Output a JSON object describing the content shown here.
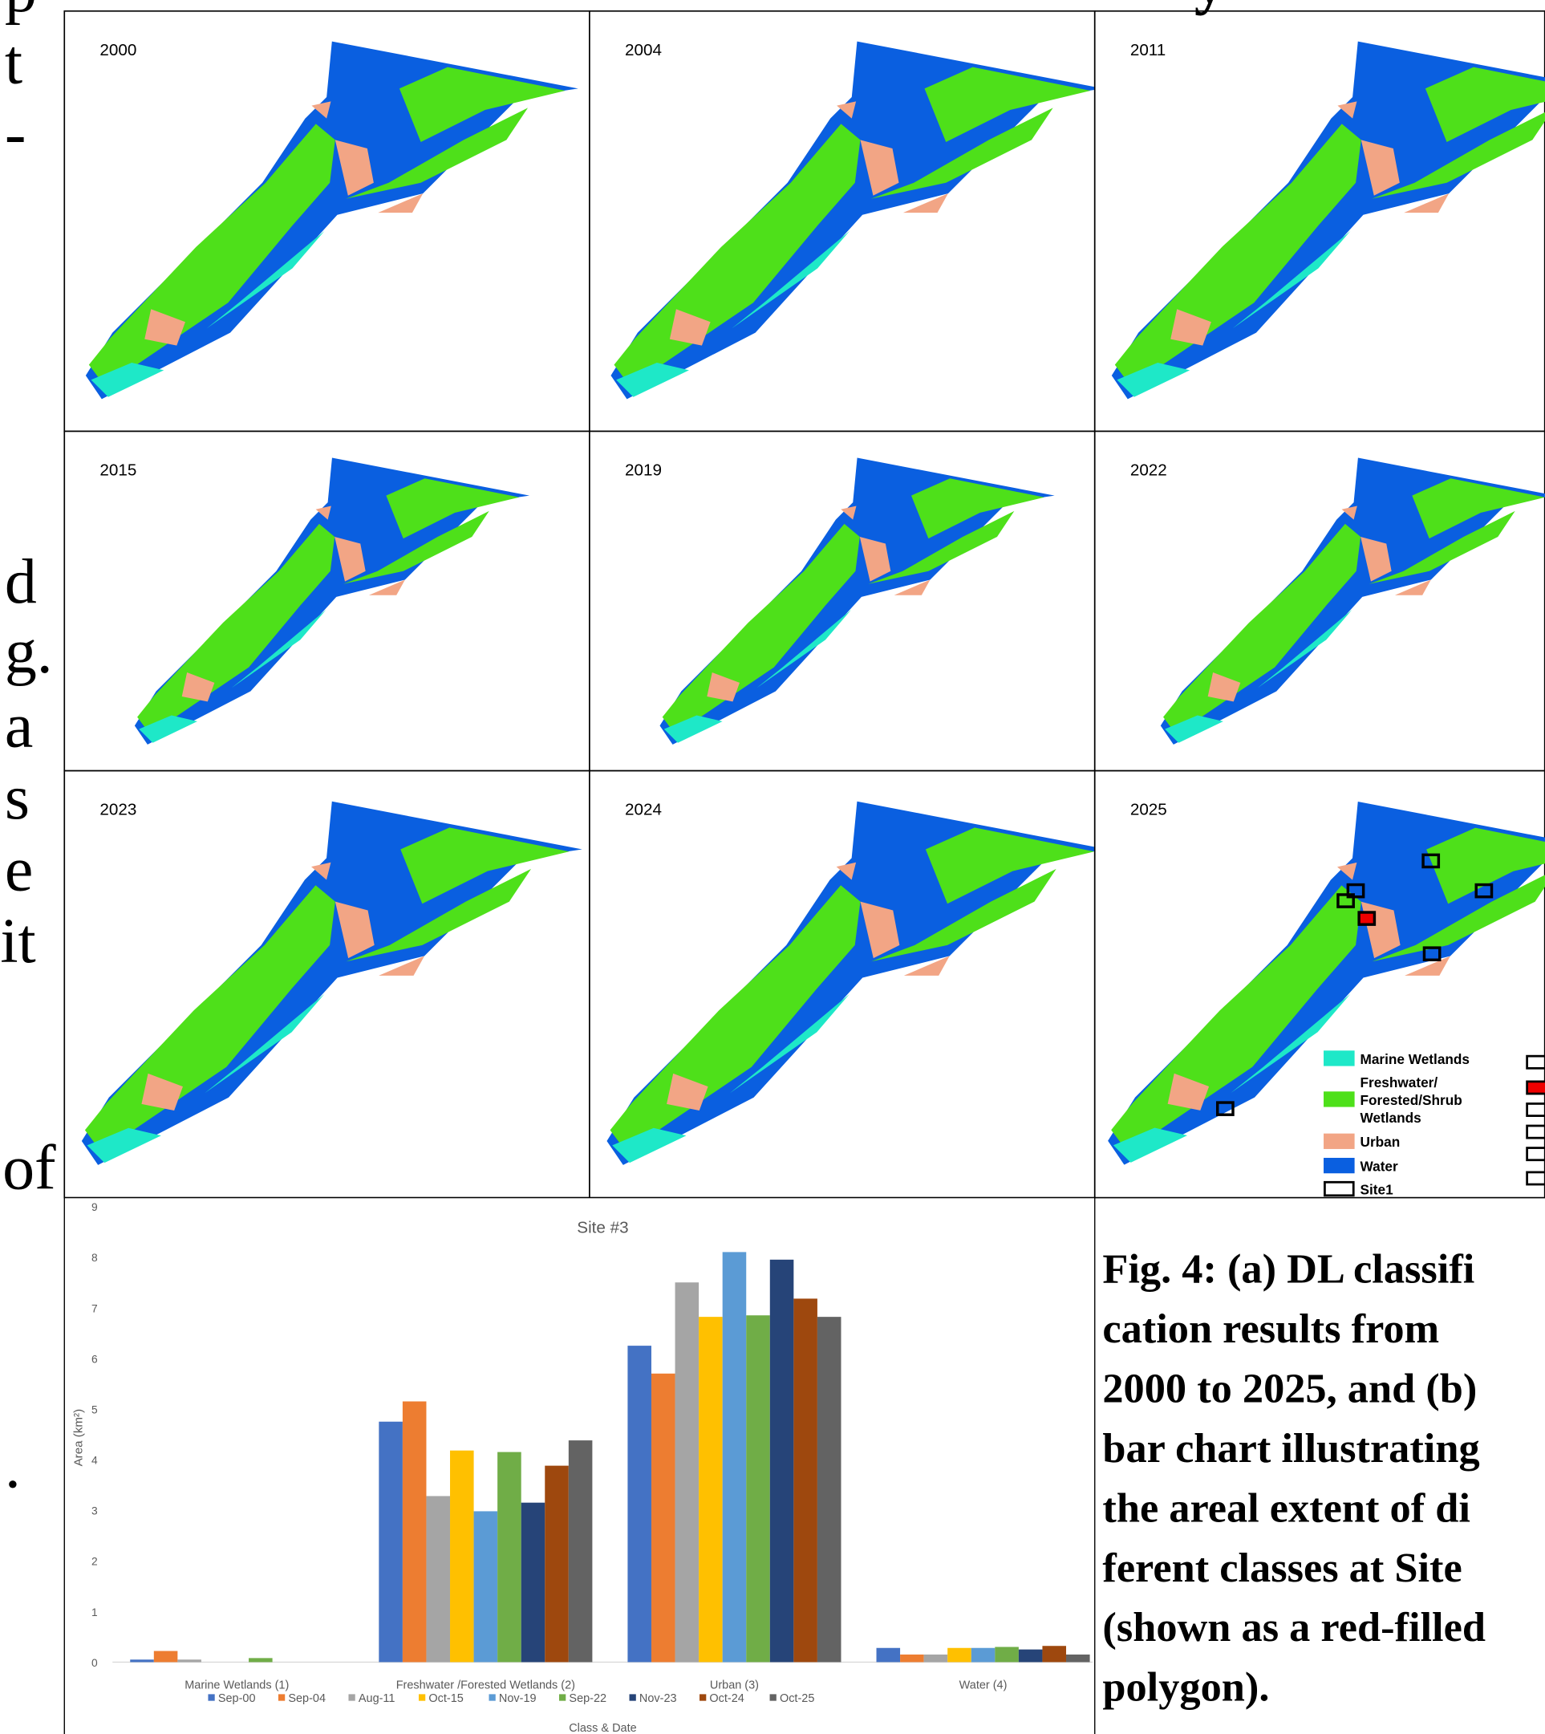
{
  "page_fragments": {
    "top": "y",
    "left_column": [
      "p",
      "t",
      "-",
      "d",
      "g.",
      "a",
      "s",
      "e",
      "it",
      "of",
      "."
    ]
  },
  "maps": {
    "panels": [
      "2000",
      "2004",
      "2011",
      "2015",
      "2019",
      "2022",
      "2023",
      "2024",
      "2025"
    ],
    "legend": {
      "marine": "Marine Wetlands",
      "freshwater": [
        "Freshwater/",
        "Forested/Shrub",
        "Wetlands"
      ],
      "urban": "Urban",
      "water": "Water",
      "site": "Site1"
    }
  },
  "chart_data": {
    "type": "bar",
    "title": "Site #3",
    "y_label": "Area (km²)",
    "x_label": "Class & Date",
    "categories": [
      "Marine Wetlands (1)",
      "Freshwater /Forested Wetlands (2)",
      "Urban (3)",
      "Water (4)"
    ],
    "series": [
      {
        "name": "Sep-00",
        "color": "#4472c4",
        "values": [
          0.05,
          4.75,
          6.25,
          0.28
        ]
      },
      {
        "name": "Sep-04",
        "color": "#ed7d31",
        "values": [
          0.22,
          5.15,
          5.7,
          0.15
        ]
      },
      {
        "name": "Aug-11",
        "color": "#a5a5a5",
        "values": [
          0.05,
          3.28,
          7.5,
          0.15
        ]
      },
      {
        "name": "Oct-15",
        "color": "#ffc000",
        "values": [
          0,
          4.18,
          6.82,
          0.28
        ]
      },
      {
        "name": "Nov-19",
        "color": "#5b9bd5",
        "values": [
          0,
          2.98,
          8.1,
          0.28
        ]
      },
      {
        "name": "Sep-22",
        "color": "#70ad47",
        "values": [
          0.08,
          4.15,
          6.85,
          0.3
        ]
      },
      {
        "name": "Nov-23",
        "color": "#264478",
        "values": [
          0,
          3.15,
          7.95,
          0.25
        ]
      },
      {
        "name": "Oct-24",
        "color": "#9e480e",
        "values": [
          0,
          3.88,
          7.18,
          0.32
        ]
      },
      {
        "name": "Oct-25",
        "color": "#636363",
        "values": [
          0,
          4.38,
          6.82,
          0.15
        ]
      }
    ],
    "ylim": [
      0,
      9
    ],
    "yticks": [
      0,
      1,
      2,
      3,
      4,
      5,
      6,
      7,
      8,
      9
    ],
    "grid": false
  },
  "caption": {
    "lines": [
      "Fig. 4: (a) DL classifi",
      "cation results from",
      "2000 to 2025, and (b)",
      "bar chart illustrating",
      "the areal extent of di",
      "ferent classes at Site",
      "(shown as a red-filled",
      "polygon)."
    ]
  }
}
